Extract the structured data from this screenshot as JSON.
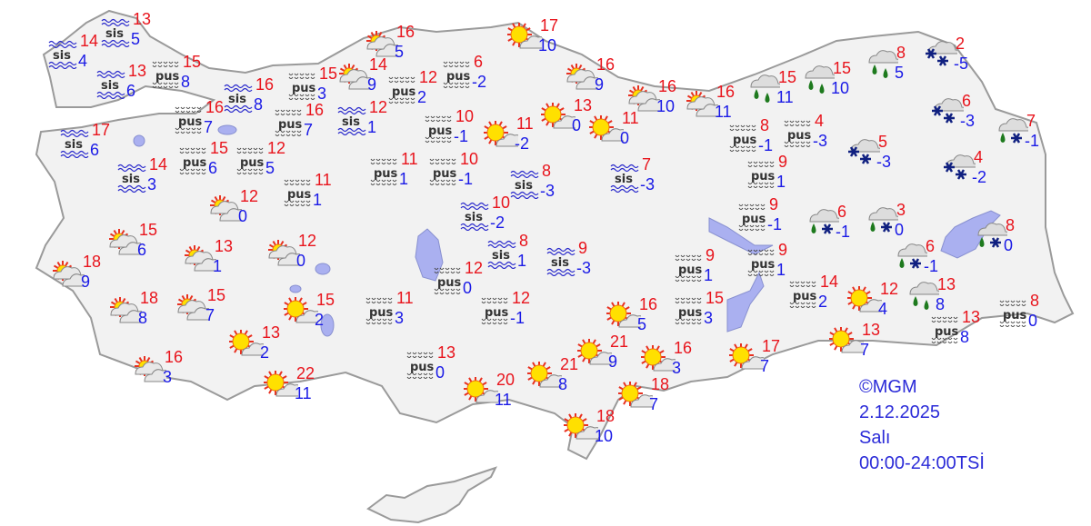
{
  "colors": {
    "max": "#e8141c",
    "min": "#1a1ae6",
    "land": "#f2f2f2",
    "border": "#999999",
    "lake": "#aab0f0",
    "credit": "#2b2bd8"
  },
  "credit": {
    "copyright": "©MGM",
    "date": "2.12.2025",
    "day": "Salı",
    "period": "00:00-24:00TSİ"
  },
  "stations": [
    {
      "icon": "fog",
      "label": "sis",
      "max": "13",
      "min": "5"
    },
    {
      "icon": "fog",
      "label": "sis",
      "max": "14",
      "min": "4"
    },
    {
      "icon": "fog",
      "label": "sis",
      "max": "13",
      "min": "6"
    },
    {
      "icon": "haze",
      "label": "pus",
      "max": "15",
      "min": "8"
    },
    {
      "icon": "fog",
      "label": "sis",
      "max": "16",
      "min": "8"
    },
    {
      "icon": "haze",
      "label": "pus",
      "max": "16",
      "min": "7"
    },
    {
      "icon": "fog",
      "label": "sis",
      "max": "17",
      "min": "6"
    },
    {
      "icon": "fog",
      "label": "sis",
      "max": "14",
      "min": "3"
    },
    {
      "icon": "haze",
      "label": "pus",
      "max": "15",
      "min": "6"
    },
    {
      "icon": "haze",
      "label": "pus",
      "max": "12",
      "min": "5"
    },
    {
      "icon": "haze",
      "label": "pus",
      "max": "15",
      "min": "3"
    },
    {
      "icon": "partly-cloudy",
      "max": "14",
      "min": "9"
    },
    {
      "icon": "partly-cloudy",
      "max": "16",
      "min": "5"
    },
    {
      "icon": "haze",
      "label": "pus",
      "max": "16",
      "min": "7"
    },
    {
      "icon": "fog",
      "label": "sis",
      "max": "12",
      "min": "1"
    },
    {
      "icon": "haze",
      "label": "pus",
      "max": "12",
      "min": "2"
    },
    {
      "icon": "haze",
      "label": "pus",
      "max": "6",
      "min": "-2"
    },
    {
      "icon": "haze",
      "label": "pus",
      "max": "10",
      "min": "-1"
    },
    {
      "icon": "haze",
      "label": "pus",
      "max": "11",
      "min": "1"
    },
    {
      "icon": "haze",
      "label": "pus",
      "max": "10",
      "min": "-1"
    },
    {
      "icon": "haze",
      "label": "pus",
      "max": "11",
      "min": "1"
    },
    {
      "icon": "partly-cloudy",
      "max": "12",
      "min": "0"
    },
    {
      "icon": "fog",
      "label": "sis",
      "max": "10",
      "min": "-2"
    },
    {
      "icon": "fog",
      "label": "sis",
      "max": "8",
      "min": "-3"
    },
    {
      "icon": "mostly-sunny",
      "max": "11",
      "min": "-2"
    },
    {
      "icon": "mostly-sunny",
      "max": "17",
      "min": "10"
    },
    {
      "icon": "mostly-sunny",
      "max": "13",
      "min": "0"
    },
    {
      "icon": "mostly-sunny",
      "max": "11",
      "min": "0"
    },
    {
      "icon": "partly-cloudy",
      "max": "16",
      "min": "9"
    },
    {
      "icon": "partly-cloudy",
      "max": "16",
      "min": "10"
    },
    {
      "icon": "partly-cloudy",
      "max": "16",
      "min": "11"
    },
    {
      "icon": "rain",
      "max": "15",
      "min": "11"
    },
    {
      "icon": "rain",
      "max": "15",
      "min": "10"
    },
    {
      "icon": "rain",
      "max": "8",
      "min": "5"
    },
    {
      "icon": "snow",
      "max": "2",
      "min": "-5"
    },
    {
      "icon": "snow",
      "max": "6",
      "min": "-3"
    },
    {
      "icon": "sleet",
      "max": "7",
      "min": "-1"
    },
    {
      "icon": "snow",
      "max": "4",
      "min": "-2"
    },
    {
      "icon": "snow",
      "max": "5",
      "min": "-3"
    },
    {
      "icon": "haze",
      "label": "pus",
      "max": "8",
      "min": "-1"
    },
    {
      "icon": "haze",
      "label": "pus",
      "max": "4",
      "min": "-3"
    },
    {
      "icon": "fog",
      "label": "sis",
      "max": "7",
      "min": "-3"
    },
    {
      "icon": "haze",
      "label": "pus",
      "max": "9",
      "min": "1"
    },
    {
      "icon": "haze",
      "label": "pus",
      "max": "9",
      "min": "-1"
    },
    {
      "icon": "sleet",
      "max": "6",
      "min": "-1"
    },
    {
      "icon": "sleet",
      "max": "3",
      "min": "0"
    },
    {
      "icon": "sleet",
      "max": "8",
      "min": "0"
    },
    {
      "icon": "sleet",
      "max": "6",
      "min": "-1"
    },
    {
      "icon": "haze",
      "label": "pus",
      "max": "9",
      "min": "1"
    },
    {
      "icon": "haze",
      "label": "pus",
      "max": "9",
      "min": "1"
    },
    {
      "icon": "fog",
      "label": "sis",
      "max": "9",
      "min": "-3"
    },
    {
      "icon": "fog",
      "label": "sis",
      "max": "8",
      "min": "1"
    },
    {
      "icon": "partly-cloudy",
      "max": "12",
      "min": "0"
    },
    {
      "icon": "partly-cloudy",
      "max": "13",
      "min": "1"
    },
    {
      "icon": "partly-cloudy",
      "max": "15",
      "min": "6"
    },
    {
      "icon": "partly-cloudy",
      "max": "18",
      "min": "9"
    },
    {
      "icon": "partly-cloudy",
      "max": "18",
      "min": "8"
    },
    {
      "icon": "partly-cloudy",
      "max": "15",
      "min": "7"
    },
    {
      "icon": "mostly-sunny",
      "max": "15",
      "min": "2"
    },
    {
      "icon": "mostly-sunny",
      "max": "13",
      "min": "2"
    },
    {
      "icon": "partly-cloudy",
      "max": "16",
      "min": "3"
    },
    {
      "icon": "mostly-sunny",
      "max": "22",
      "min": "11"
    },
    {
      "icon": "haze",
      "label": "pus",
      "max": "12",
      "min": "0"
    },
    {
      "icon": "haze",
      "label": "pus",
      "max": "11",
      "min": "3"
    },
    {
      "icon": "haze",
      "label": "pus",
      "max": "12",
      "min": "-1"
    },
    {
      "icon": "haze",
      "label": "pus",
      "max": "13",
      "min": "0"
    },
    {
      "icon": "mostly-sunny",
      "max": "20",
      "min": "11"
    },
    {
      "icon": "mostly-sunny",
      "max": "21",
      "min": "8"
    },
    {
      "icon": "mostly-sunny",
      "max": "16",
      "min": "5"
    },
    {
      "icon": "mostly-sunny",
      "max": "21",
      "min": "9"
    },
    {
      "icon": "mostly-sunny",
      "max": "16",
      "min": "3"
    },
    {
      "icon": "mostly-sunny",
      "max": "18",
      "min": "7"
    },
    {
      "icon": "mostly-sunny",
      "max": "18",
      "min": "10"
    },
    {
      "icon": "haze",
      "label": "pus",
      "max": "15",
      "min": "3"
    },
    {
      "icon": "mostly-sunny",
      "max": "17",
      "min": "7"
    },
    {
      "icon": "mostly-sunny",
      "max": "13",
      "min": "7"
    },
    {
      "icon": "mostly-sunny",
      "max": "12",
      "min": "4"
    },
    {
      "icon": "rain",
      "max": "13",
      "min": "8"
    },
    {
      "icon": "haze",
      "label": "pus",
      "max": "14",
      "min": "2"
    },
    {
      "icon": "haze",
      "label": "pus",
      "max": "13",
      "min": "8"
    },
    {
      "icon": "haze",
      "label": "pus",
      "max": "8",
      "min": "0"
    }
  ]
}
